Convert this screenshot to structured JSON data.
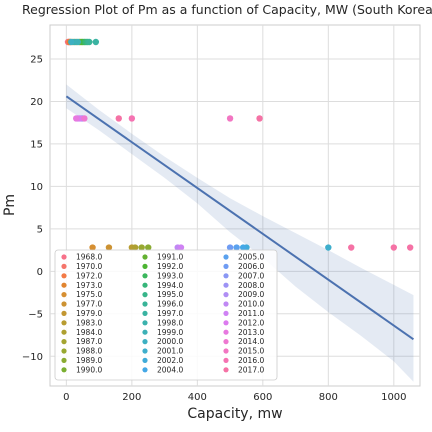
{
  "chart_data": {
    "type": "scatter",
    "title": "Regression Plot of Pm as a function of Capacity, MW (South Korea)",
    "xlabel": "Capacity, mw",
    "ylabel": "Pm",
    "xlim": [
      -50,
      1080
    ],
    "ylim": [
      -13.5,
      29
    ],
    "xticks": [
      0,
      200,
      400,
      600,
      800,
      1000
    ],
    "yticks": [
      -10,
      -5,
      0,
      5,
      10,
      15,
      20,
      25
    ],
    "grid": true,
    "legend_position": "lower-left",
    "series": [
      {
        "name": "1968.0",
        "color": "#f77189",
        "points": [
          [
            5,
            27
          ]
        ]
      },
      {
        "name": "1970.0",
        "color": "#f5756b",
        "points": [
          [
            7,
            27
          ]
        ]
      },
      {
        "name": "1972.0",
        "color": "#f37a46",
        "points": [
          [
            10,
            27
          ]
        ]
      },
      {
        "name": "1973.0",
        "color": "#e1842f",
        "points": [
          [
            12,
            27
          ]
        ]
      },
      {
        "name": "1975.0",
        "color": "#d68f32",
        "points": [
          [
            80,
            2.8
          ]
        ]
      },
      {
        "name": "1977.0",
        "color": "#cc9232",
        "points": [
          [
            130,
            2.8
          ]
        ]
      },
      {
        "name": "1979.0",
        "color": "#c29732",
        "points": [
          [
            20,
            27
          ]
        ]
      },
      {
        "name": "1983.0",
        "color": "#b89c31",
        "points": [
          [
            200,
            2.8
          ]
        ]
      },
      {
        "name": "1984.0",
        "color": "#aea031",
        "points": [
          [
            210,
            2.8
          ]
        ]
      },
      {
        "name": "1987.0",
        "color": "#a4a431",
        "points": [
          [
            30,
            27
          ]
        ]
      },
      {
        "name": "1988.0",
        "color": "#98a831",
        "points": [
          [
            230,
            2.8
          ]
        ]
      },
      {
        "name": "1989.0",
        "color": "#8aab32",
        "points": [
          [
            250,
            2.8
          ]
        ]
      },
      {
        "name": "1990.0",
        "color": "#7aaf31",
        "points": [
          [
            40,
            27
          ]
        ]
      },
      {
        "name": "1991.0",
        "color": "#64b131",
        "points": [
          [
            45,
            27
          ]
        ]
      },
      {
        "name": "1992.0",
        "color": "#4db533",
        "points": [
          [
            50,
            27
          ]
        ]
      },
      {
        "name": "1993.0",
        "color": "#3bb75d",
        "points": [
          [
            55,
            27
          ]
        ]
      },
      {
        "name": "1994.0",
        "color": "#36b67a",
        "points": [
          [
            60,
            27
          ]
        ]
      },
      {
        "name": "1995.0",
        "color": "#38b58a",
        "points": [
          [
            65,
            27
          ]
        ]
      },
      {
        "name": "1996.0",
        "color": "#39b498",
        "points": [
          [
            70,
            27
          ]
        ]
      },
      {
        "name": "1997.0",
        "color": "#3ab3a2",
        "points": [
          [
            90,
            27
          ]
        ]
      },
      {
        "name": "1998.0",
        "color": "#3bb2ad",
        "points": [
          [
            25,
            27
          ]
        ]
      },
      {
        "name": "1999.0",
        "color": "#3cb1b7",
        "points": [
          [
            35,
            27
          ]
        ]
      },
      {
        "name": "2000.0",
        "color": "#3db0c2",
        "points": [
          [
            15,
            27
          ]
        ]
      },
      {
        "name": "2001.0",
        "color": "#3eaecc",
        "points": [
          [
            800,
            2.8
          ]
        ]
      },
      {
        "name": "2002.0",
        "color": "#40abd9",
        "points": [
          [
            550,
            2.8
          ]
        ]
      },
      {
        "name": "2004.0",
        "color": "#44a8e6",
        "points": [
          [
            540,
            2.8
          ]
        ]
      },
      {
        "name": "2005.0",
        "color": "#5aa1ee",
        "points": [
          [
            520,
            2.8
          ]
        ]
      },
      {
        "name": "2006.0",
        "color": "#6f9cf3",
        "points": [
          [
            500,
            2.8
          ]
        ]
      },
      {
        "name": "2007.0",
        "color": "#8a97f4",
        "points": [
          [
            50,
            18
          ]
        ]
      },
      {
        "name": "2008.0",
        "color": "#9d93f5",
        "points": [
          [
            35,
            18
          ]
        ]
      },
      {
        "name": "2009.0",
        "color": "#b08ef4",
        "points": [
          [
            45,
            18
          ]
        ]
      },
      {
        "name": "2010.0",
        "color": "#c088f4",
        "points": [
          [
            340,
            2.8
          ]
        ]
      },
      {
        "name": "2011.0",
        "color": "#cf82f4",
        "points": [
          [
            350,
            2.8
          ]
        ]
      },
      {
        "name": "2012.0",
        "color": "#dc7bef",
        "points": [
          [
            40,
            18
          ]
        ]
      },
      {
        "name": "2013.0",
        "color": "#e779e0",
        "points": [
          [
            30,
            18
          ]
        ]
      },
      {
        "name": "2014.0",
        "color": "#ee78d1",
        "points": [
          [
            55,
            18
          ]
        ]
      },
      {
        "name": "2015.0",
        "color": "#f276c2",
        "points": [
          [
            500,
            18
          ]
        ]
      },
      {
        "name": "2016.0",
        "color": "#f573b2",
        "points": [
          [
            200,
            18
          ]
        ]
      },
      {
        "name": "2017.0",
        "color": "#f572a5",
        "points": [
          [
            590,
            18
          ],
          [
            160,
            18
          ],
          [
            870,
            2.8
          ],
          [
            1000,
            2.8
          ],
          [
            1050,
            2.8
          ]
        ]
      }
    ],
    "regression": {
      "x": [
        0,
        1060
      ],
      "y": [
        20.6,
        -8.0
      ]
    },
    "confidence_band": {
      "x": [
        0,
        100,
        200,
        300,
        400,
        500,
        600,
        700,
        800,
        900,
        1000,
        1060
      ],
      "upper": [
        22.0,
        19.0,
        16.2,
        13.5,
        11.0,
        8.6,
        6.5,
        4.5,
        2.5,
        0.4,
        -1.6,
        -2.8
      ],
      "lower": [
        19.2,
        16.6,
        13.8,
        11.0,
        8.0,
        4.6,
        1.6,
        -1.8,
        -4.8,
        -7.6,
        -10.6,
        -13.0
      ]
    }
  }
}
